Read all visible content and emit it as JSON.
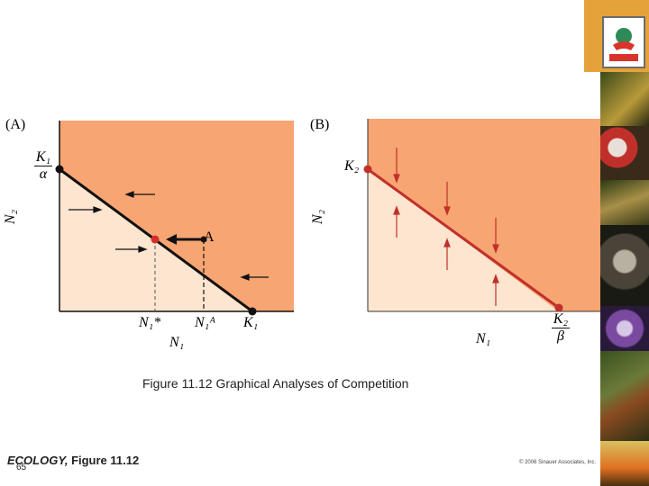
{
  "panel_a": {
    "label": "(A)",
    "y_axis": "N₂",
    "k1_alpha_num": "K₁",
    "k1_alpha_den": "α",
    "x_ticks": [
      "N₁*",
      "N₁ᴬ",
      "K₁"
    ],
    "x_axis": "N₁",
    "point_label": "A"
  },
  "panel_b": {
    "label": "(B)",
    "y_axis": "N₂",
    "k2_label": "K₂",
    "x_axis": "N₁",
    "k2_beta_num": "K₂",
    "k2_beta_den": "β"
  },
  "caption": "Figure 11.12 Graphical Analyses of Competition",
  "footer": {
    "book": "ECOLOGY,",
    "figure": "Figure 11.12",
    "slide_number": "65",
    "copyright": "© 2006 Sinauer Associates, Inc."
  },
  "colors": {
    "dark_region": "#f7a572",
    "light_region": "#fde5cf",
    "panel_a_line": "#111111",
    "panel_b_line": "#c0312b",
    "equilibrium_dot": "#d4302a"
  },
  "sidebar": {
    "logo_text": "ENETN",
    "photos": [
      "orchid-photo",
      "mushroom-photo",
      "frog-photo",
      "monkey-photo",
      "sea-slug-photo",
      "salamander-photo",
      "bird-photo"
    ]
  }
}
